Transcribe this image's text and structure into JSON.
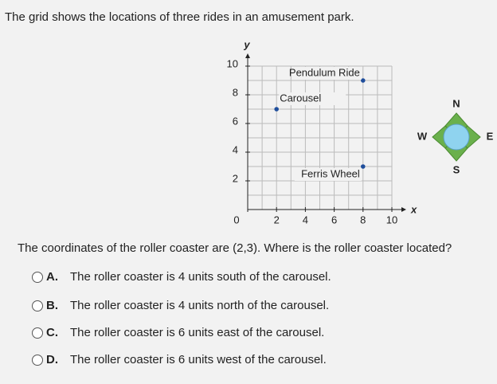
{
  "question": "The grid shows the locations of three rides in an amusement park.",
  "chart_data": {
    "type": "scatter",
    "x": [
      8,
      2,
      8
    ],
    "values": [
      9,
      7,
      3
    ],
    "point_labels": [
      "Pendulum Ride",
      "Carousel",
      "Ferris Wheel"
    ],
    "color": "#1f4e9c",
    "xlim": [
      0,
      10
    ],
    "ylim": [
      0,
      10
    ],
    "xticks": [
      0,
      2,
      4,
      6,
      8,
      10
    ],
    "yticks": [
      2,
      4,
      6,
      8,
      10
    ],
    "xlabel": "x",
    "ylabel": "y",
    "grid": true
  },
  "compass": {
    "north": "N",
    "south": "S",
    "east": "E",
    "west": "W"
  },
  "prompt": "The coordinates of the roller coaster are (2,3). Where is the roller coaster located?",
  "options": [
    {
      "letter": "A.",
      "text": "The roller coaster is 4 units south of the carousel."
    },
    {
      "letter": "B.",
      "text": "The roller coaster is 4 units north of the carousel."
    },
    {
      "letter": "C.",
      "text": "The roller coaster is 6 units east of the carousel."
    },
    {
      "letter": "D.",
      "text": "The roller coaster is 6 units west of the carousel."
    }
  ]
}
